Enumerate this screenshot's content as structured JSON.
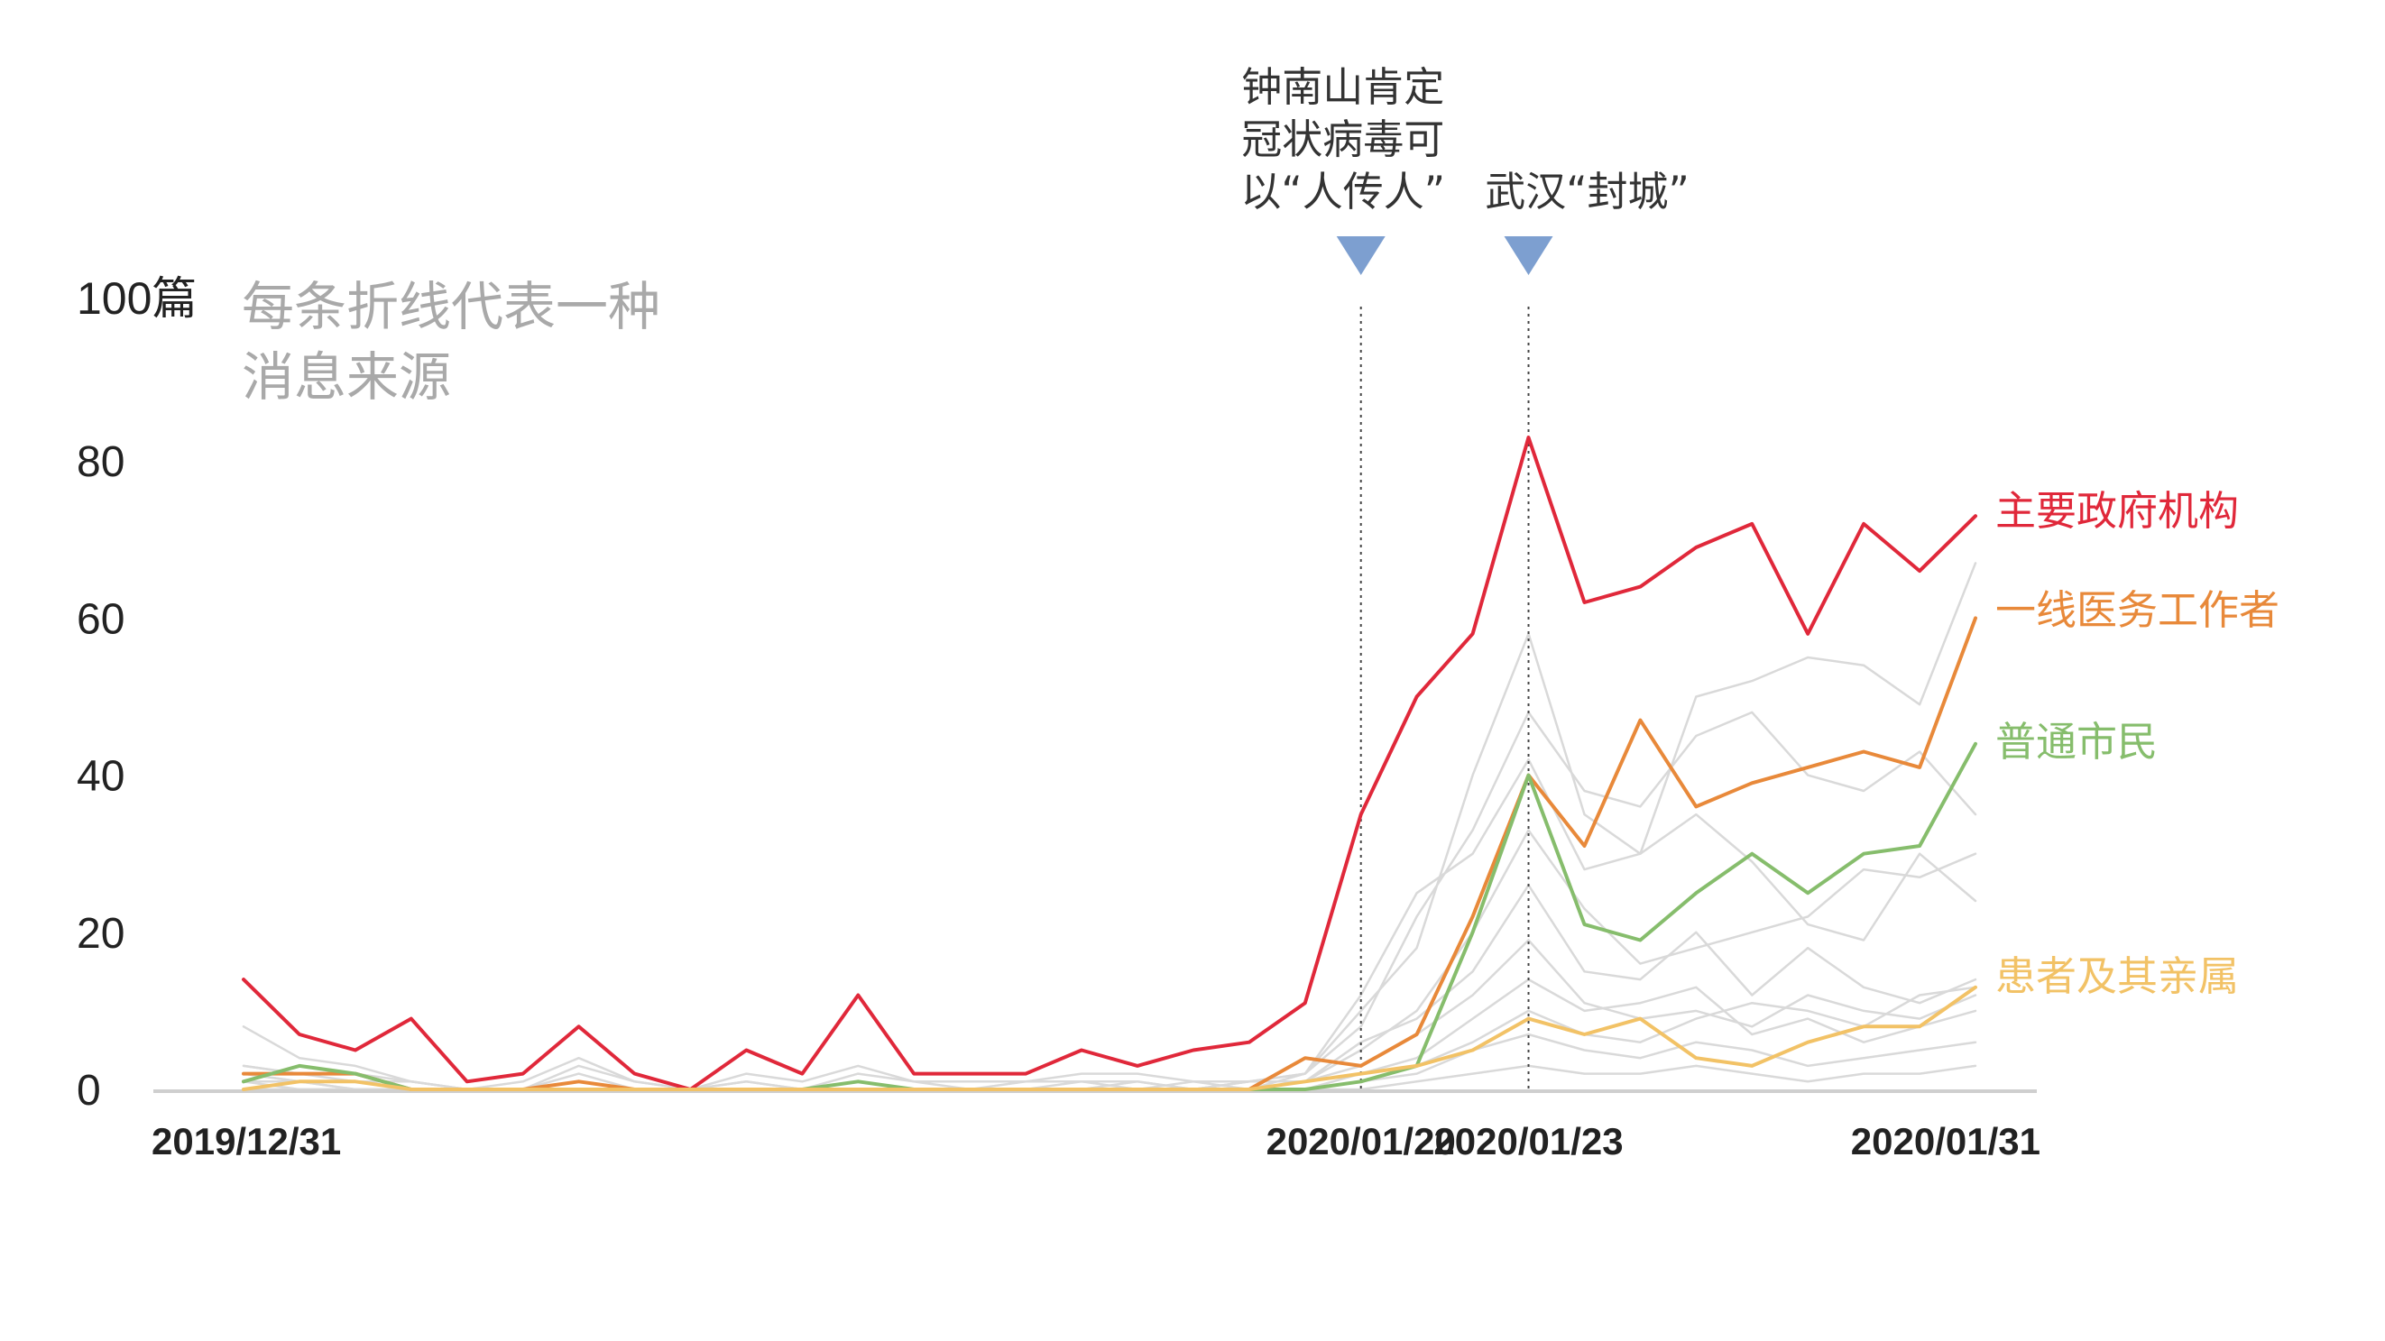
{
  "chart_data": {
    "type": "line",
    "ylabel_unit": "100篇",
    "note_lines": [
      "每条折线代表一种",
      "消息来源"
    ],
    "ylim": [
      0,
      100
    ],
    "yticks": [
      {
        "value": 0,
        "label": "0"
      },
      {
        "value": 20,
        "label": "20"
      },
      {
        "value": 40,
        "label": "40"
      },
      {
        "value": 60,
        "label": "60"
      },
      {
        "value": 80,
        "label": "80"
      }
    ],
    "x": [
      "2019-12-31",
      "2020-01-01",
      "2020-01-02",
      "2020-01-03",
      "2020-01-04",
      "2020-01-05",
      "2020-01-06",
      "2020-01-07",
      "2020-01-08",
      "2020-01-09",
      "2020-01-10",
      "2020-01-11",
      "2020-01-12",
      "2020-01-13",
      "2020-01-14",
      "2020-01-15",
      "2020-01-16",
      "2020-01-17",
      "2020-01-18",
      "2020-01-19",
      "2020-01-20",
      "2020-01-21",
      "2020-01-22",
      "2020-01-23",
      "2020-01-24",
      "2020-01-25",
      "2020-01-26",
      "2020-01-27",
      "2020-01-28",
      "2020-01-29",
      "2020-01-30",
      "2020-01-31"
    ],
    "xticks": [
      {
        "date": "2019-12-31",
        "label": "2019/12/31"
      },
      {
        "date": "2020-01-20",
        "label": "2020/01/20"
      },
      {
        "date": "2020-01-23",
        "label": "2020/01/23"
      },
      {
        "date": "2020-01-31",
        "label": "2020/01/31"
      }
    ],
    "events": [
      {
        "date": "2020-01-20",
        "lines": [
          "钟南山肯定",
          "冠状病毒可",
          "以“人传人”"
        ]
      },
      {
        "date": "2020-01-23",
        "lines": [
          "武汉“封城”"
        ]
      }
    ],
    "series": [
      {
        "name": "主要政府机构",
        "color": "#e0283a",
        "highlight": true,
        "values": [
          14,
          7,
          5,
          9,
          1,
          2,
          8,
          2,
          0,
          5,
          2,
          12,
          2,
          2,
          2,
          5,
          3,
          5,
          6,
          11,
          35,
          50,
          58,
          83,
          62,
          64,
          69,
          72,
          58,
          72,
          66,
          73
        ]
      },
      {
        "name": "一线医务工作者",
        "color": "#e8893a",
        "highlight": true,
        "values": [
          2,
          2,
          2,
          0,
          0,
          0,
          1,
          0,
          0,
          0,
          0,
          0,
          0,
          0,
          0,
          0,
          0,
          0,
          0,
          4,
          3,
          7,
          22,
          40,
          31,
          47,
          36,
          39,
          41,
          43,
          41,
          60
        ]
      },
      {
        "name": "普通市民",
        "color": "#86bd6c",
        "highlight": true,
        "values": [
          1,
          3,
          2,
          0,
          0,
          0,
          0,
          0,
          0,
          0,
          0,
          1,
          0,
          0,
          0,
          0,
          0,
          0,
          0,
          0,
          1,
          3,
          20,
          40,
          21,
          19,
          25,
          30,
          25,
          30,
          31,
          44
        ]
      },
      {
        "name": "患者及其亲属",
        "color": "#f2c266",
        "highlight": true,
        "values": [
          0,
          1,
          1,
          0,
          0,
          0,
          0,
          0,
          0,
          0,
          0,
          0,
          0,
          0,
          0,
          0,
          0,
          0,
          0,
          1,
          2,
          3,
          5,
          9,
          7,
          9,
          4,
          3,
          6,
          8,
          8,
          13
        ]
      },
      {
        "name": "",
        "color": "#d9d9d9",
        "highlight": false,
        "values": [
          8,
          4,
          3,
          1,
          0,
          1,
          4,
          1,
          0,
          2,
          1,
          3,
          1,
          1,
          1,
          2,
          2,
          1,
          1,
          2,
          10,
          18,
          40,
          58,
          35,
          30,
          50,
          52,
          55,
          54,
          49,
          67
        ]
      },
      {
        "name": "",
        "color": "#d9d9d9",
        "highlight": false,
        "values": [
          3,
          2,
          2,
          1,
          0,
          0,
          3,
          1,
          0,
          1,
          0,
          2,
          1,
          0,
          1,
          1,
          1,
          0,
          1,
          2,
          8,
          22,
          33,
          48,
          38,
          36,
          45,
          48,
          40,
          38,
          43,
          35
        ]
      },
      {
        "name": "",
        "color": "#d9d9d9",
        "highlight": false,
        "values": [
          2,
          1,
          1,
          0,
          0,
          0,
          0,
          0,
          0,
          0,
          0,
          1,
          0,
          0,
          0,
          0,
          1,
          0,
          0,
          2,
          12,
          25,
          30,
          42,
          28,
          30,
          35,
          29,
          21,
          19,
          30,
          24
        ]
      },
      {
        "name": "",
        "color": "#d9d9d9",
        "highlight": false,
        "values": [
          1,
          1,
          0,
          0,
          0,
          0,
          0,
          0,
          0,
          0,
          0,
          0,
          0,
          0,
          0,
          0,
          0,
          0,
          1,
          1,
          5,
          10,
          20,
          33,
          23,
          16,
          18,
          20,
          22,
          28,
          27,
          30
        ]
      },
      {
        "name": "",
        "color": "#d9d9d9",
        "highlight": false,
        "values": [
          3,
          2,
          1,
          1,
          0,
          0,
          1,
          0,
          0,
          1,
          0,
          1,
          0,
          0,
          0,
          1,
          0,
          0,
          1,
          1,
          6,
          9,
          15,
          26,
          15,
          14,
          20,
          12,
          18,
          13,
          11,
          14
        ]
      },
      {
        "name": "",
        "color": "#d9d9d9",
        "highlight": false,
        "values": [
          1,
          0,
          0,
          0,
          0,
          0,
          0,
          0,
          0,
          0,
          0,
          0,
          0,
          0,
          0,
          0,
          0,
          0,
          0,
          1,
          3,
          7,
          12,
          19,
          11,
          9,
          10,
          8,
          12,
          10,
          9,
          12
        ]
      },
      {
        "name": "",
        "color": "#d9d9d9",
        "highlight": false,
        "values": [
          0,
          0,
          0,
          0,
          0,
          0,
          0,
          0,
          0,
          0,
          0,
          0,
          0,
          0,
          0,
          0,
          0,
          0,
          0,
          0,
          2,
          4,
          9,
          14,
          10,
          11,
          13,
          7,
          9,
          6,
          8,
          10
        ]
      },
      {
        "name": "",
        "color": "#d9d9d9",
        "highlight": false,
        "values": [
          0,
          1,
          0,
          0,
          0,
          0,
          0,
          0,
          0,
          0,
          0,
          0,
          0,
          0,
          0,
          0,
          0,
          0,
          0,
          0,
          1,
          3,
          6,
          10,
          7,
          6,
          9,
          11,
          10,
          8,
          12,
          13
        ]
      },
      {
        "name": "",
        "color": "#d9d9d9",
        "highlight": false,
        "values": [
          2,
          1,
          1,
          0,
          0,
          0,
          2,
          0,
          0,
          0,
          0,
          1,
          0,
          0,
          0,
          0,
          0,
          1,
          0,
          0,
          1,
          2,
          5,
          7,
          5,
          4,
          6,
          5,
          3,
          4,
          5,
          6
        ]
      },
      {
        "name": "",
        "color": "#d9d9d9",
        "highlight": false,
        "values": [
          0,
          0,
          0,
          0,
          0,
          0,
          0,
          0,
          0,
          0,
          0,
          0,
          0,
          0,
          0,
          0,
          0,
          0,
          0,
          0,
          0,
          1,
          2,
          3,
          2,
          2,
          3,
          2,
          1,
          2,
          2,
          3
        ]
      }
    ],
    "grid": false,
    "legend": "right-end labels"
  }
}
